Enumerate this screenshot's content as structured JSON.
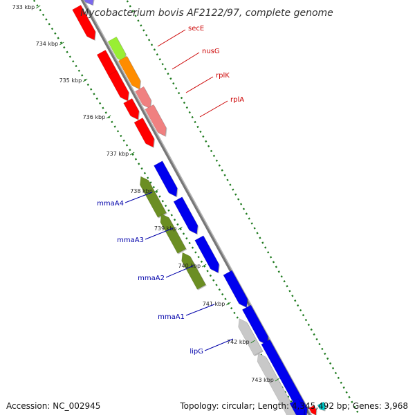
{
  "title": "Mycobacterium bovis AF2122/97, complete genome",
  "accession": "Accession: NC_002945",
  "topology": "Topology: circular; Length: 4,345,492 bp; Genes: 3,968",
  "colors": {
    "backbone": "#777777",
    "dots_inner": "#1e7a1e",
    "dots_outer": "#1e7a1e",
    "label_red": "#cc0000",
    "label_blue": "#0000aa"
  },
  "ticks": [
    {
      "label": "733 kbp"
    },
    {
      "label": "734 kbp"
    },
    {
      "label": "735 kbp"
    },
    {
      "label": "736 kbp"
    },
    {
      "label": "737 kbp"
    },
    {
      "label": "738 kbp"
    },
    {
      "label": "739 kbp"
    },
    {
      "label": "740 kbp"
    },
    {
      "label": "741 kbp"
    },
    {
      "label": "742 kbp"
    },
    {
      "label": "743 kbp"
    }
  ],
  "gene_labels": [
    {
      "name": "secE",
      "color": "#cc0000"
    },
    {
      "name": "nusG",
      "color": "#cc0000"
    },
    {
      "name": "rplK",
      "color": "#cc0000"
    },
    {
      "name": "rplA",
      "color": "#cc0000"
    },
    {
      "name": "mmaA4",
      "color": "#0000aa"
    },
    {
      "name": "mmaA3",
      "color": "#0000aa"
    },
    {
      "name": "mmaA2",
      "color": "#0000aa"
    },
    {
      "name": "mmaA1",
      "color": "#0000aa"
    },
    {
      "name": "lipG",
      "color": "#0000aa"
    }
  ],
  "features": [
    {
      "kind": "gene",
      "track": "cds",
      "color": "#ff0000"
    },
    {
      "kind": "gene",
      "track": "cds",
      "color": "#7b68ee"
    },
    {
      "kind": "gene",
      "track": "cds",
      "color": "#ff0000"
    },
    {
      "kind": "gene",
      "track": "cds",
      "color": "#ff0000"
    },
    {
      "kind": "gene",
      "track": "cds",
      "color": "#ff0000"
    },
    {
      "kind": "gene",
      "track": "cds",
      "color": "#ff0000"
    },
    {
      "kind": "gene",
      "track": "other",
      "color": "#99ee33"
    },
    {
      "kind": "gene",
      "track": "other",
      "color": "#ff8c00"
    },
    {
      "kind": "gene",
      "track": "other",
      "color": "#f08080"
    },
    {
      "kind": "gene",
      "track": "other",
      "color": "#f08080"
    },
    {
      "kind": "gene",
      "track": "cds",
      "color": "#6b8e23"
    },
    {
      "kind": "gene",
      "track": "cds",
      "color": "#6b8e23"
    },
    {
      "kind": "gene",
      "track": "cds",
      "color": "#6b8e23"
    },
    {
      "kind": "gene",
      "track": "other",
      "color": "#0000ee"
    },
    {
      "kind": "gene",
      "track": "other",
      "color": "#0000ee"
    },
    {
      "kind": "gene",
      "track": "other",
      "color": "#0000ee"
    },
    {
      "kind": "gene",
      "track": "other",
      "color": "#0000ee"
    },
    {
      "kind": "gene",
      "track": "other",
      "color": "#0000ee"
    },
    {
      "kind": "gene",
      "track": "other",
      "color": "#0000ee"
    },
    {
      "kind": "gene",
      "track": "cds",
      "color": "#c8c8c8"
    },
    {
      "kind": "gene",
      "track": "cds",
      "color": "#c8c8c8"
    },
    {
      "kind": "gene",
      "track": "other",
      "color": "#0000ee"
    },
    {
      "kind": "gene",
      "track": "other",
      "color": "#ff0000"
    },
    {
      "kind": "gene",
      "track": "other",
      "color": "#00cccc"
    }
  ]
}
